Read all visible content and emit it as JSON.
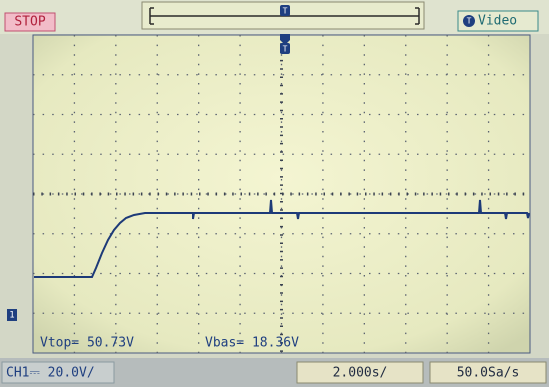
{
  "top_bar": {
    "status": "STOP",
    "trigger_marker": "T",
    "trigger_type": "Video"
  },
  "channel_marker": "1",
  "measurements": {
    "vtop": "Vtop= 50.73V",
    "vbas": "Vbas= 18.36V"
  },
  "bottom_bar": {
    "channel": "CH1⎓ 20.0V/",
    "timebase": "2.000s/",
    "sample_rate": "50.0Sa/s"
  }
}
